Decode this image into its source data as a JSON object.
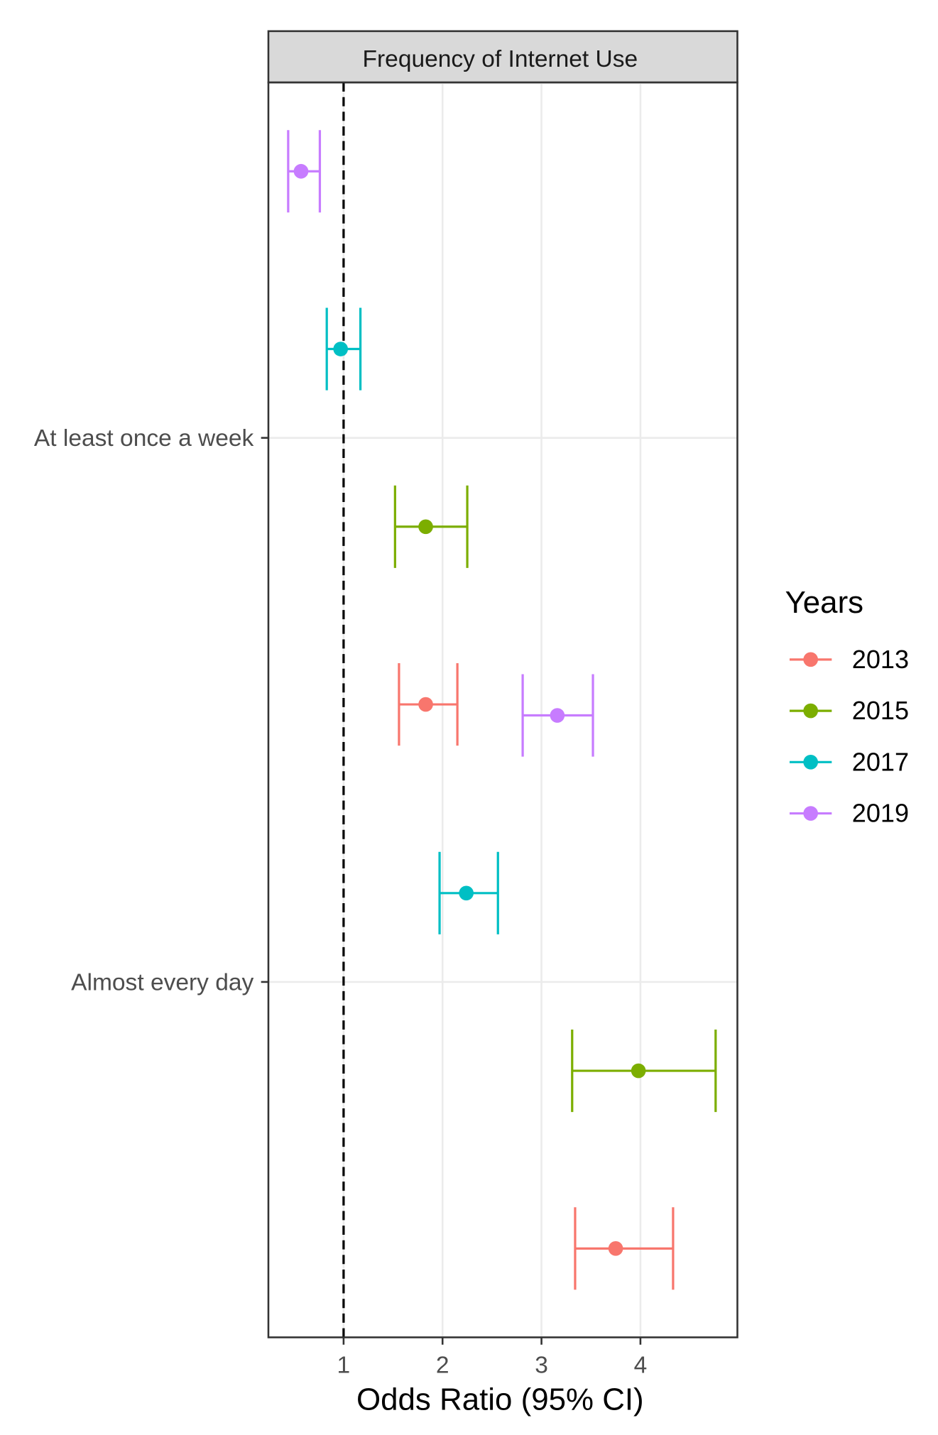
{
  "chart_data": {
    "type": "errorbar",
    "strip_title": "Frequency of Internet Use",
    "x_label": "Odds Ratio (95% CI)",
    "legend_title": "Years",
    "categories": [
      "At least once a week",
      "Almost every day"
    ],
    "xlim": [
      0.24,
      4.98
    ],
    "xticks": [
      1,
      2,
      3,
      4
    ],
    "reference_line": 1,
    "grid": true,
    "legend_position": "right",
    "series": [
      {
        "name": "2013",
        "color": "#F8766D",
        "values": [
          1.83,
          3.75
        ],
        "lower": [
          1.56,
          3.34
        ],
        "upper": [
          2.15,
          4.33
        ]
      },
      {
        "name": "2015",
        "color": "#7CAE00",
        "values": [
          1.83,
          3.98
        ],
        "lower": [
          1.52,
          3.31
        ],
        "upper": [
          2.25,
          4.76
        ]
      },
      {
        "name": "2017",
        "color": "#00BFC4",
        "values": [
          0.97,
          2.24
        ],
        "lower": [
          0.83,
          1.97
        ],
        "upper": [
          1.17,
          2.56
        ]
      },
      {
        "name": "2019",
        "color": "#C77CFF",
        "values": [
          0.57,
          3.16
        ],
        "lower": [
          0.44,
          2.81
        ],
        "upper": [
          0.76,
          3.52
        ]
      }
    ]
  }
}
